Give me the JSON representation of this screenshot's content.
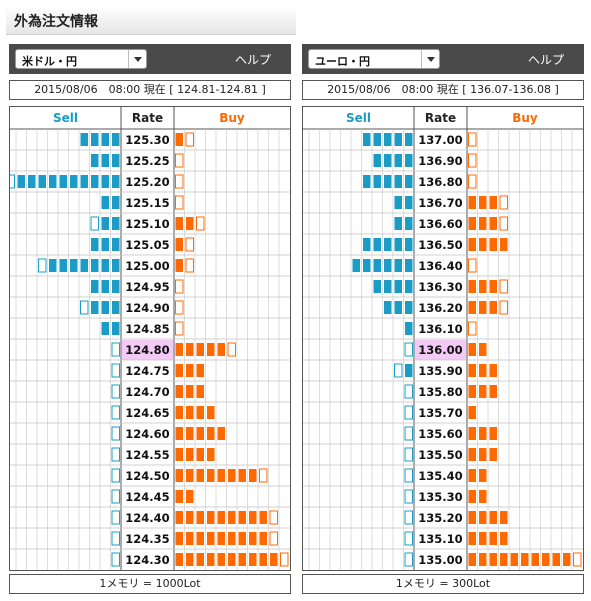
{
  "page": {
    "title": "外為注文情報"
  },
  "legend_labels": {
    "sell": "Sell",
    "rate": "Rate",
    "buy": "Buy"
  },
  "colors": {
    "sell_fill": "#1a9cc6",
    "sell_empty_border": "#1a9cc6",
    "buy_fill": "#ff6a00",
    "buy_empty_border": "#ff6a00",
    "current_rate_bg": "#f3c9f5",
    "grid": "#c8c8c8"
  },
  "panels": [
    {
      "pair": "米ドル・円",
      "help": "ヘルプ",
      "info": "2015/08/06　08:00 現在 [ 124.81-124.81 ]",
      "footer": "1メモリ = 1000Lot",
      "current_rate": "124.80",
      "rows": [
        {
          "rate": "125.30",
          "sell": 4.0,
          "buy": 1.6
        },
        {
          "rate": "125.25",
          "sell": 3.0,
          "buy": 0.8
        },
        {
          "rate": "125.20",
          "sell": 10.6,
          "buy": 0.8
        },
        {
          "rate": "125.15",
          "sell": 2.0,
          "buy": 0.8
        },
        {
          "rate": "125.10",
          "sell": 2.6,
          "buy": 2.4
        },
        {
          "rate": "125.05",
          "sell": 3.0,
          "buy": 1.6
        },
        {
          "rate": "125.00",
          "sell": 7.5,
          "buy": 1.6
        },
        {
          "rate": "124.95",
          "sell": 3.0,
          "buy": 0.8
        },
        {
          "rate": "124.90",
          "sell": 3.5,
          "buy": 0.8
        },
        {
          "rate": "124.85",
          "sell": 2.0,
          "buy": 0.8
        },
        {
          "rate": "124.80",
          "sell": 0.8,
          "buy": 5.8
        },
        {
          "rate": "124.75",
          "sell": 0.8,
          "buy": 3.0
        },
        {
          "rate": "124.70",
          "sell": 0.8,
          "buy": 3.0
        },
        {
          "rate": "124.65",
          "sell": 0.8,
          "buy": 4.0
        },
        {
          "rate": "124.60",
          "sell": 0.8,
          "buy": 5.0
        },
        {
          "rate": "124.55",
          "sell": 0.8,
          "buy": 4.0
        },
        {
          "rate": "124.50",
          "sell": 0.8,
          "buy": 8.5
        },
        {
          "rate": "124.45",
          "sell": 0.8,
          "buy": 2.0
        },
        {
          "rate": "124.40",
          "sell": 0.8,
          "buy": 9.5
        },
        {
          "rate": "124.35",
          "sell": 0.8,
          "buy": 9.5
        },
        {
          "rate": "124.30",
          "sell": 0.8,
          "buy": 10.6
        }
      ]
    },
    {
      "pair": "ユーロ・円",
      "help": "ヘルプ",
      "info": "2015/08/06　08:00 現在 [ 136.07-136.08 ]",
      "footer": "1メモリ = 300Lot",
      "current_rate": "136.00",
      "rows": [
        {
          "rate": "137.00",
          "sell": 5.0,
          "buy": 0.8
        },
        {
          "rate": "136.90",
          "sell": 4.0,
          "buy": 0.8
        },
        {
          "rate": "136.80",
          "sell": 5.0,
          "buy": 0.8
        },
        {
          "rate": "136.70",
          "sell": 2.0,
          "buy": 3.2
        },
        {
          "rate": "136.60",
          "sell": 2.0,
          "buy": 3.2
        },
        {
          "rate": "136.50",
          "sell": 5.0,
          "buy": 4.0
        },
        {
          "rate": "136.40",
          "sell": 6.0,
          "buy": 0.8
        },
        {
          "rate": "136.30",
          "sell": 4.0,
          "buy": 3.2
        },
        {
          "rate": "136.20",
          "sell": 3.0,
          "buy": 3.2
        },
        {
          "rate": "136.10",
          "sell": 1.0,
          "buy": 0.8
        },
        {
          "rate": "136.00",
          "sell": 0.8,
          "buy": 2.0
        },
        {
          "rate": "135.90",
          "sell": 1.6,
          "buy": 3.0
        },
        {
          "rate": "135.80",
          "sell": 0.8,
          "buy": 3.0
        },
        {
          "rate": "135.70",
          "sell": 0.8,
          "buy": 1.0
        },
        {
          "rate": "135.60",
          "sell": 0.8,
          "buy": 3.0
        },
        {
          "rate": "135.50",
          "sell": 0.8,
          "buy": 3.0
        },
        {
          "rate": "135.40",
          "sell": 0.8,
          "buy": 2.0
        },
        {
          "rate": "135.30",
          "sell": 0.8,
          "buy": 2.0
        },
        {
          "rate": "135.20",
          "sell": 0.8,
          "buy": 4.0
        },
        {
          "rate": "135.10",
          "sell": 0.8,
          "buy": 4.0
        },
        {
          "rate": "135.00",
          "sell": 0.8,
          "buy": 10.6
        }
      ]
    }
  ]
}
